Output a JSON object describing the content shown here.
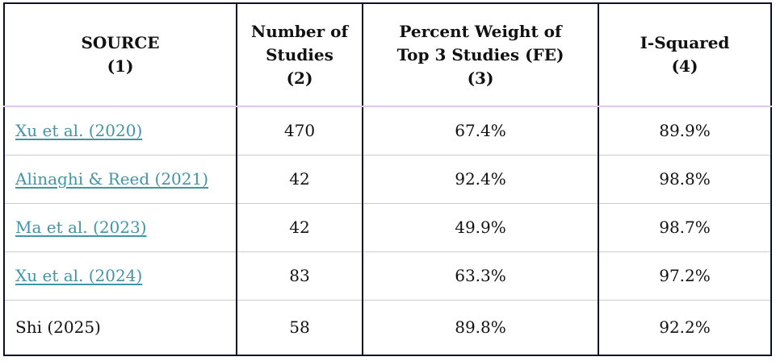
{
  "colors": {
    "link": "#4294a6",
    "border_dark": "#0d0e2a",
    "header_divider": "#ddc8ee",
    "row_divider": "#cccccc"
  },
  "table": {
    "headers": [
      {
        "line1": "SOURCE",
        "line2": "(1)"
      },
      {
        "line1": "Number of",
        "line2": "Studies",
        "line3": "(2)"
      },
      {
        "line1": "Percent Weight of",
        "line2": "Top 3 Studies (FE)",
        "line3": "(3)"
      },
      {
        "line1": "I-Squared",
        "line2": "(4)"
      }
    ],
    "rows": [
      {
        "source": "Xu et al. (2020)",
        "is_link": true,
        "num_studies": "470",
        "pct_weight_top3": "67.4%",
        "i_squared": "89.9%"
      },
      {
        "source": "Alinaghi & Reed (2021)",
        "is_link": true,
        "num_studies": "42",
        "pct_weight_top3": "92.4%",
        "i_squared": "98.8%"
      },
      {
        "source": "Ma et al. (2023)",
        "is_link": true,
        "num_studies": "42",
        "pct_weight_top3": "49.9%",
        "i_squared": "98.7%"
      },
      {
        "source": "Xu et al. (2024)",
        "is_link": true,
        "num_studies": "83",
        "pct_weight_top3": "63.3%",
        "i_squared": "97.2%"
      },
      {
        "source": "Shi (2025)",
        "is_link": false,
        "num_studies": "58",
        "pct_weight_top3": "89.8%",
        "i_squared": "92.2%"
      }
    ]
  }
}
